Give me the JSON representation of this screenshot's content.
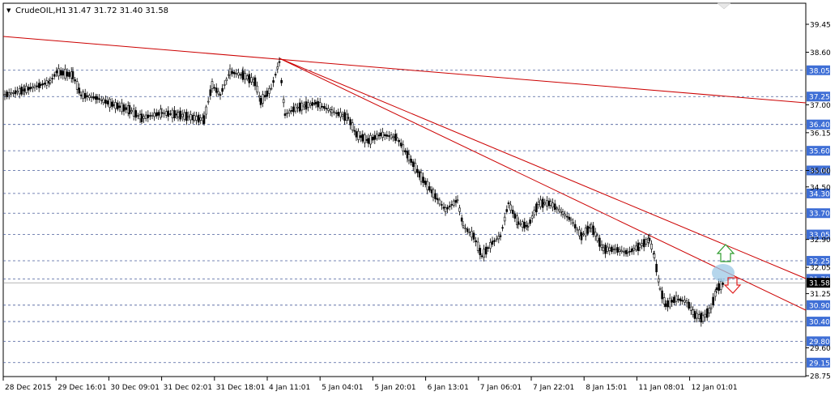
{
  "header": {
    "menu_glyph": "▼",
    "symbol": "CrudeOIL,H1",
    "ohlc": "31.47 31.72 31.40 31.58"
  },
  "colors": {
    "background": "#ffffff",
    "grid_dashed": "#4a5f9c",
    "trendline": "#cc0000",
    "axis_badge": "#3f6fd6",
    "current_price_badge": "#000000",
    "up_arrow": "#2e9c2e",
    "down_arrow": "#e02020",
    "highlight": "#9cc8e6"
  },
  "price_axis": {
    "plain_ticks": [
      "39.45",
      "38.60",
      "37.00",
      "36.15",
      "35.00",
      "34.50",
      "32.90",
      "32.05",
      "31.25",
      "29.60",
      "28.75"
    ],
    "level_badges": [
      "38.05",
      "37.25",
      "36.40",
      "35.60",
      "35.00",
      "34.30",
      "33.70",
      "33.05",
      "32.25",
      "31.70",
      "30.90",
      "30.40",
      "29.80",
      "29.15"
    ],
    "current_price": "31.58"
  },
  "time_axis": {
    "labels": [
      "28 Dec 2015",
      "29 Dec 16:01",
      "30 Dec 09:01",
      "31 Dec 02:01",
      "31 Dec 18:01",
      "4 Jan 11:01",
      "5 Jan 04:01",
      "5 Jan 20:01",
      "6 Jan 13:01",
      "7 Jan 06:01",
      "7 Jan 22:01",
      "8 Jan 15:01",
      "11 Jan 08:01",
      "12 Jan 01:01"
    ]
  },
  "icons": {
    "up": "up-arrow-icon",
    "down": "down-arrow-icon",
    "corner": "scroll-marker-icon"
  }
}
